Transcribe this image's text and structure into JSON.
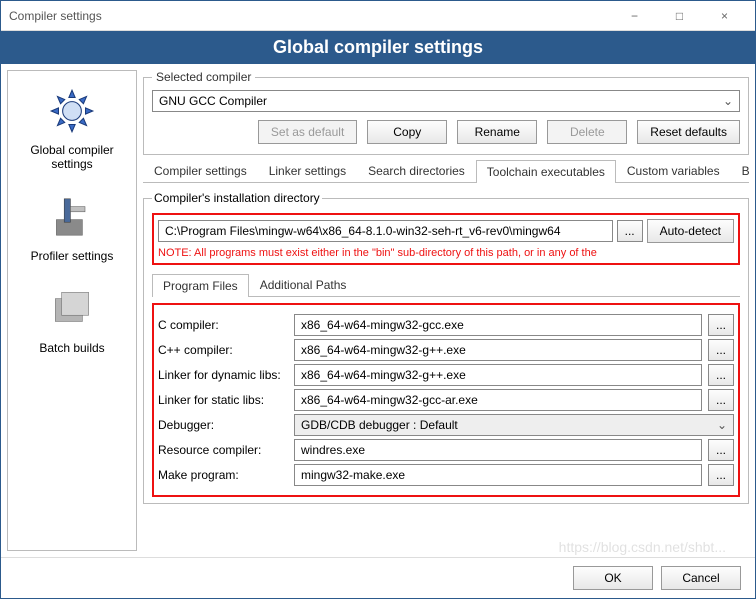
{
  "window": {
    "title": "Compiler settings"
  },
  "banner": "Global compiler settings",
  "sidebar": {
    "items": [
      {
        "label": "Global compiler settings"
      },
      {
        "label": "Profiler settings"
      },
      {
        "label": "Batch builds"
      }
    ]
  },
  "selected": {
    "legend": "Selected compiler",
    "value": "GNU GCC Compiler",
    "buttons": {
      "set_default": "Set as default",
      "copy": "Copy",
      "rename": "Rename",
      "delete": "Delete",
      "reset": "Reset defaults"
    }
  },
  "tabs": {
    "items": [
      "Compiler settings",
      "Linker settings",
      "Search directories",
      "Toolchain executables",
      "Custom variables",
      "Bui"
    ],
    "active_index": 3
  },
  "install": {
    "legend": "Compiler's installation directory",
    "path": "C:\\Program Files\\mingw-w64\\x86_64-8.1.0-win32-seh-rt_v6-rev0\\mingw64",
    "browse": "...",
    "autodetect": "Auto-detect",
    "note": "NOTE: All programs must exist either in the \"bin\" sub-directory of this path, or in any of the"
  },
  "subtabs": {
    "items": [
      "Program Files",
      "Additional Paths"
    ],
    "active_index": 0
  },
  "programs": {
    "rows": [
      {
        "label": "C compiler:",
        "value": "x86_64-w64-mingw32-gcc.exe",
        "browse": true
      },
      {
        "label": "C++ compiler:",
        "value": "x86_64-w64-mingw32-g++.exe",
        "browse": true
      },
      {
        "label": "Linker for dynamic libs:",
        "value": "x86_64-w64-mingw32-g++.exe",
        "browse": true
      },
      {
        "label": "Linker for static libs:",
        "value": "x86_64-w64-mingw32-gcc-ar.exe",
        "browse": true
      },
      {
        "label": "Debugger:",
        "value": "GDB/CDB debugger : Default",
        "type": "combo",
        "browse": false
      },
      {
        "label": "Resource compiler:",
        "value": "windres.exe",
        "browse": true
      },
      {
        "label": "Make program:",
        "value": "mingw32-make.exe",
        "browse": true
      }
    ]
  },
  "footer": {
    "ok": "OK",
    "cancel": "Cancel"
  },
  "colors": {
    "banner_bg": "#2c5a8c",
    "highlight_border": "#e11",
    "note_text": "#e11"
  },
  "watermark": "https://blog.csdn.net/shbt..."
}
